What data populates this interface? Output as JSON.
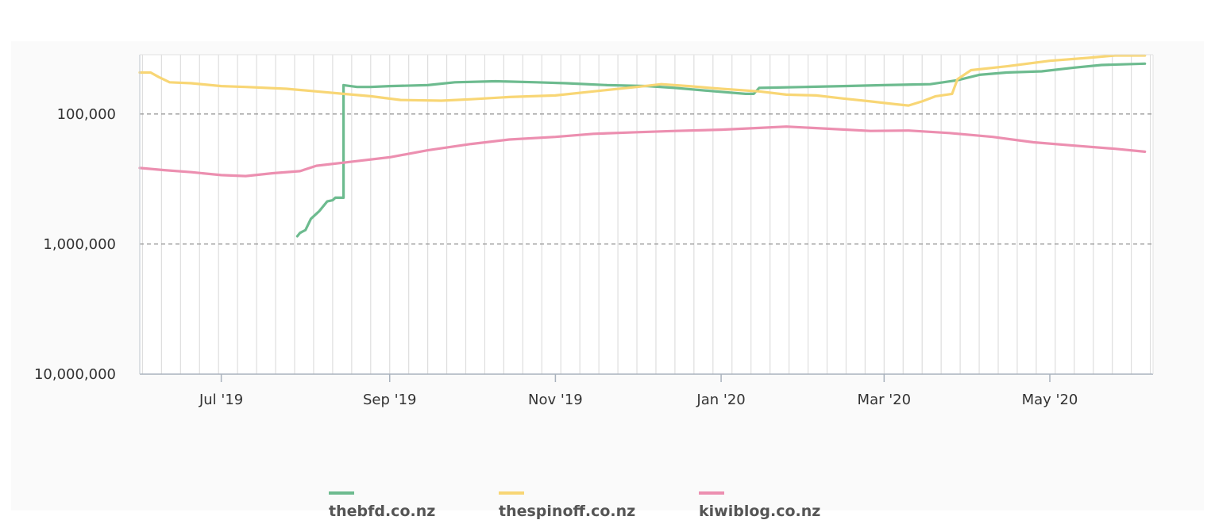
{
  "colors": {
    "panel_bg": "#fafafa",
    "plot_bg": "#ffffff",
    "grid": "#dedede",
    "dashed": "#999999"
  },
  "chart_data": {
    "type": "line",
    "title": "",
    "xlabel": "",
    "ylabel": "",
    "y_scale": "log",
    "y_inverted": true,
    "ylim": [
      10000000,
      35000
    ],
    "y_ticks": [
      {
        "value": 100000,
        "label": "100,000"
      },
      {
        "value": 1000000,
        "label": "1,000,000"
      },
      {
        "value": 10000000,
        "label": "10,000,000"
      }
    ],
    "xlim": [
      "2019-06-01",
      "2020-06-08"
    ],
    "x_ticks": [
      {
        "value": "2019-07-01",
        "label": "Jul '19"
      },
      {
        "value": "2019-09-01",
        "label": "Sep '19"
      },
      {
        "value": "2019-11-01",
        "label": "Nov '19"
      },
      {
        "value": "2020-01-01",
        "label": "Jan '20"
      },
      {
        "value": "2020-03-01",
        "label": "Mar '20"
      },
      {
        "value": "2020-05-01",
        "label": "May '20"
      }
    ],
    "grid": "weekly vertical lines; dashed horizontal lines at labelled ticks",
    "legend_position": "bottom",
    "series": [
      {
        "name": "thebfd.co.nz",
        "color": "#6dbb8f",
        "points": [
          [
            "2019-07-29",
            870000
          ],
          [
            "2019-07-30",
            820000
          ],
          [
            "2019-08-01",
            780000
          ],
          [
            "2019-08-03",
            640000
          ],
          [
            "2019-08-06",
            560000
          ],
          [
            "2019-08-09",
            470000
          ],
          [
            "2019-08-11",
            460000
          ],
          [
            "2019-08-12",
            440000
          ],
          [
            "2019-08-15",
            440000
          ],
          [
            "2019-08-15",
            60000
          ],
          [
            "2019-08-20",
            62000
          ],
          [
            "2019-08-25",
            62000
          ],
          [
            "2019-09-01",
            61000
          ],
          [
            "2019-09-15",
            60000
          ],
          [
            "2019-09-25",
            57000
          ],
          [
            "2019-10-10",
            56000
          ],
          [
            "2019-10-25",
            57000
          ],
          [
            "2019-11-05",
            58000
          ],
          [
            "2019-11-20",
            60000
          ],
          [
            "2019-12-05",
            61000
          ],
          [
            "2019-12-15",
            63000
          ],
          [
            "2019-12-30",
            67000
          ],
          [
            "2020-01-10",
            70000
          ],
          [
            "2020-01-13",
            70000
          ],
          [
            "2020-01-15",
            63000
          ],
          [
            "2020-02-01",
            62000
          ],
          [
            "2020-02-15",
            61000
          ],
          [
            "2020-03-01",
            60000
          ],
          [
            "2020-03-18",
            59000
          ],
          [
            "2020-03-28",
            55000
          ],
          [
            "2020-04-05",
            50000
          ],
          [
            "2020-04-15",
            48000
          ],
          [
            "2020-04-28",
            47000
          ],
          [
            "2020-05-10",
            44000
          ],
          [
            "2020-05-20",
            42000
          ],
          [
            "2020-06-05",
            41000
          ]
        ]
      },
      {
        "name": "thespinoff.co.nz",
        "color": "#f8d675",
        "points": [
          [
            "2019-06-01",
            48000
          ],
          [
            "2019-06-05",
            48000
          ],
          [
            "2019-06-08",
            52000
          ],
          [
            "2019-06-12",
            57000
          ],
          [
            "2019-06-20",
            58000
          ],
          [
            "2019-07-01",
            61000
          ],
          [
            "2019-07-10",
            62000
          ],
          [
            "2019-07-25",
            64000
          ],
          [
            "2019-08-05",
            67000
          ],
          [
            "2019-08-15",
            70000
          ],
          [
            "2019-08-25",
            73000
          ],
          [
            "2019-09-05",
            78000
          ],
          [
            "2019-09-20",
            79000
          ],
          [
            "2019-10-01",
            77000
          ],
          [
            "2019-10-15",
            74000
          ],
          [
            "2019-11-01",
            72000
          ],
          [
            "2019-11-15",
            67000
          ],
          [
            "2019-12-01",
            62000
          ],
          [
            "2019-12-10",
            59000
          ],
          [
            "2019-12-20",
            61000
          ],
          [
            "2020-01-01",
            64000
          ],
          [
            "2020-01-15",
            67000
          ],
          [
            "2020-01-25",
            71000
          ],
          [
            "2020-02-05",
            72000
          ],
          [
            "2020-02-15",
            76000
          ],
          [
            "2020-02-25",
            80000
          ],
          [
            "2020-03-05",
            84000
          ],
          [
            "2020-03-10",
            86000
          ],
          [
            "2020-03-15",
            80000
          ],
          [
            "2020-03-20",
            73000
          ],
          [
            "2020-03-26",
            70000
          ],
          [
            "2020-03-28",
            54000
          ],
          [
            "2020-04-02",
            46000
          ],
          [
            "2020-04-15",
            43000
          ],
          [
            "2020-05-01",
            39000
          ],
          [
            "2020-05-15",
            37000
          ],
          [
            "2020-05-25",
            35500
          ],
          [
            "2020-06-05",
            35500
          ]
        ]
      },
      {
        "name": "kiwiblog.co.nz",
        "color": "#ec8fb0",
        "points": [
          [
            "2019-06-01",
            260000
          ],
          [
            "2019-06-10",
            270000
          ],
          [
            "2019-06-20",
            280000
          ],
          [
            "2019-07-01",
            295000
          ],
          [
            "2019-07-10",
            300000
          ],
          [
            "2019-07-20",
            285000
          ],
          [
            "2019-07-30",
            275000
          ],
          [
            "2019-08-05",
            250000
          ],
          [
            "2019-08-20",
            230000
          ],
          [
            "2019-09-01",
            215000
          ],
          [
            "2019-09-15",
            190000
          ],
          [
            "2019-10-01",
            170000
          ],
          [
            "2019-10-15",
            157000
          ],
          [
            "2019-11-01",
            150000
          ],
          [
            "2019-11-15",
            142000
          ],
          [
            "2019-12-01",
            138000
          ],
          [
            "2019-12-15",
            135000
          ],
          [
            "2020-01-01",
            132000
          ],
          [
            "2020-01-15",
            128000
          ],
          [
            "2020-01-25",
            125000
          ],
          [
            "2020-02-10",
            130000
          ],
          [
            "2020-02-25",
            135000
          ],
          [
            "2020-03-10",
            134000
          ],
          [
            "2020-03-25",
            140000
          ],
          [
            "2020-04-10",
            150000
          ],
          [
            "2020-04-25",
            165000
          ],
          [
            "2020-05-10",
            175000
          ],
          [
            "2020-05-25",
            185000
          ],
          [
            "2020-06-05",
            195000
          ]
        ]
      }
    ]
  }
}
